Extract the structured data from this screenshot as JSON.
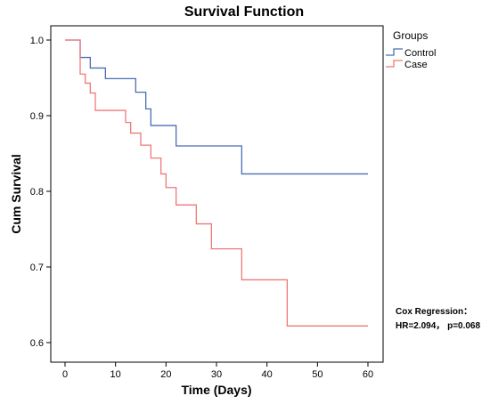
{
  "chart_data": {
    "type": "line",
    "step": true,
    "title": "Survival Function",
    "xlabel": "Time (Days)",
    "ylabel": "Cum Survival",
    "xlim": [
      0,
      60
    ],
    "ylim": [
      0.6,
      1.0
    ],
    "x_ticks": [
      0,
      10,
      20,
      30,
      40,
      50,
      60
    ],
    "y_ticks": [
      0.6,
      0.7,
      0.8,
      0.9,
      1.0
    ],
    "x_tick_labels": [
      "0",
      "10",
      "20",
      "30",
      "40",
      "50",
      "60"
    ],
    "y_tick_labels": [
      "0.6",
      "0.7",
      "0.8",
      "0.9",
      "1.0"
    ],
    "grid": false,
    "legend": {
      "title": "Groups",
      "placement": "top-right, outside plot"
    },
    "series": [
      {
        "name": "Control",
        "color": "#4a6fb5",
        "x": [
          0,
          3,
          5,
          8,
          14,
          16,
          17,
          22,
          35,
          60
        ],
        "y": [
          1.0,
          0.977,
          0.963,
          0.949,
          0.931,
          0.909,
          0.887,
          0.86,
          0.823,
          0.823
        ]
      },
      {
        "name": "Case",
        "color": "#f07878",
        "x": [
          0,
          3,
          4,
          5,
          6,
          12,
          13,
          15,
          17,
          19,
          20,
          22,
          26,
          29,
          35,
          44,
          60
        ],
        "y": [
          1.0,
          0.955,
          0.943,
          0.93,
          0.907,
          0.891,
          0.877,
          0.861,
          0.844,
          0.823,
          0.805,
          0.782,
          0.757,
          0.724,
          0.683,
          0.622,
          0.622
        ]
      }
    ],
    "annotation": {
      "line1": "Cox Regression：",
      "line2": "HR=2.094， p=0.068"
    }
  }
}
